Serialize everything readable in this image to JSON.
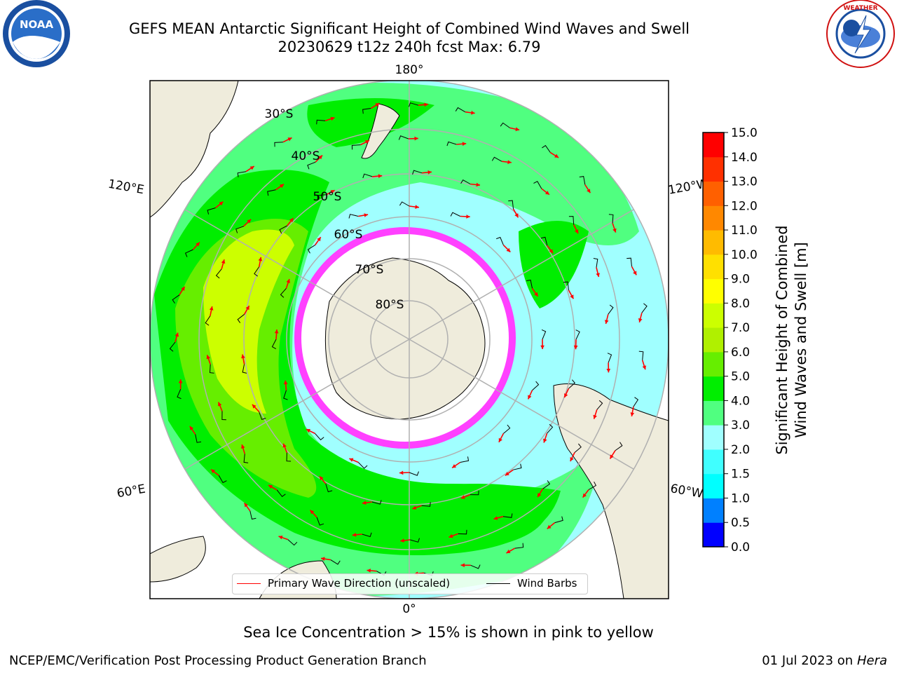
{
  "title_line1": "GEFS MEAN Antarctic Significant Height of Combined Wind Waves and Swell",
  "title_line2": "20230629 t12z 240h fcst   Max: 6.79",
  "logos": {
    "left": "noaa-logo",
    "right": "nws-logo"
  },
  "map": {
    "projection": "south-polar-stereographic",
    "longitude_labels": [
      "180°",
      "120°E",
      "120°W",
      "60°E",
      "60°W",
      "0°"
    ],
    "latitude_labels": [
      "30°S",
      "40°S",
      "50°S",
      "60°S",
      "70°S",
      "80°S"
    ]
  },
  "legend": {
    "wave_label": "Primary Wave Direction (unscaled)",
    "barb_label": "Wind Barbs",
    "wave_color": "#ff0000",
    "barb_color": "#000000"
  },
  "colorbar": {
    "label_line1": "Significant Height of Combined",
    "label_line2": "Wind Waves and Swell [m]",
    "ticks": [
      "0.0",
      "0.5",
      "1.0",
      "1.5",
      "2.0",
      "3.0",
      "4.0",
      "5.0",
      "6.0",
      "7.0",
      "8.0",
      "9.0",
      "10.0",
      "11.0",
      "12.0",
      "13.0",
      "14.0",
      "15.0"
    ],
    "colors": [
      "#0000ff",
      "#0080ff",
      "#00ffff",
      "#40ffff",
      "#a0ffff",
      "#50ff80",
      "#00ee00",
      "#66ee00",
      "#b0f000",
      "#ccff00",
      "#ffff00",
      "#ffe000",
      "#ffbb00",
      "#ff8800",
      "#ff6000",
      "#ff3000",
      "#ff0000"
    ]
  },
  "note": "Sea Ice Concentration > 15% is shown in pink to yellow",
  "footer_left": "NCEP/EMC/Verification Post Processing Product Generation Branch",
  "footer_date": "01 Jul 2023 on",
  "footer_host": "Hera"
}
